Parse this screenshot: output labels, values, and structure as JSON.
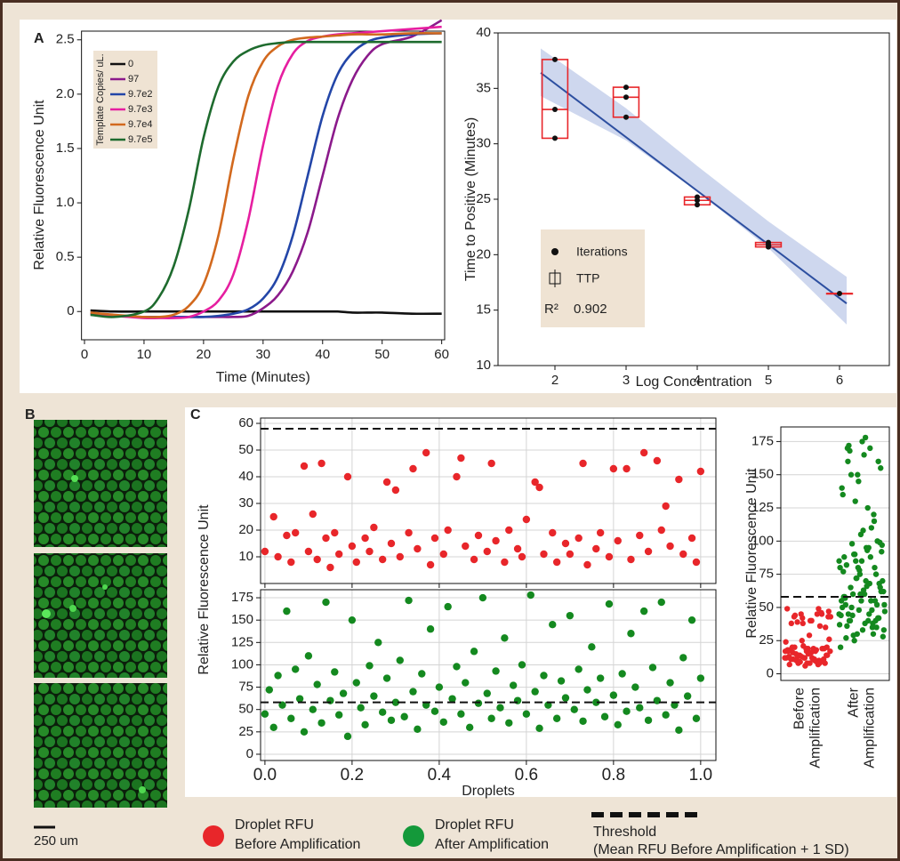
{
  "panel_labels": [
    "A",
    "B",
    "C"
  ],
  "scale_bar": "250 um",
  "legend": [
    {
      "lines": [
        "Droplet RFU",
        "Before Amplification"
      ],
      "color": "#e8262a"
    },
    {
      "lines": [
        "Droplet RFU",
        "After Amplification"
      ],
      "color": "#14993a"
    },
    {
      "lines": [
        "Threshold",
        "(Mean RFU Before Amplification + 1 SD)"
      ],
      "color": "#111111"
    }
  ],
  "chart_data": [
    {
      "type": "line",
      "xlabel": "Time (Minutes)",
      "ylabel": "Relative Fluorescence Unit",
      "legend_title": "Template Copies/ uL.",
      "xlim": [
        -0.5,
        60.5
      ],
      "ylim": [
        -0.26,
        2.58
      ],
      "xticks": [
        0,
        10,
        20,
        30,
        40,
        50,
        60
      ],
      "yticks": [
        0,
        0.5,
        {
          "value": 1,
          "label": "1.0"
        },
        1.5,
        {
          "value": 2,
          "label": "2.0"
        },
        2.5
      ],
      "x": [
        1,
        5,
        10,
        12.5,
        15,
        17.5,
        20,
        22.5,
        25,
        27.5,
        30,
        32.5,
        35,
        37.5,
        40,
        42.5,
        45,
        47.5,
        50,
        55,
        60
      ],
      "series": [
        {
          "name": "0",
          "color": "#111111",
          "values": [
            0.01,
            0,
            0,
            0,
            0,
            0,
            0,
            0,
            0,
            0,
            0,
            0,
            0,
            0,
            0,
            0,
            -0.01,
            -0.01,
            -0.01,
            -0.02,
            -0.02
          ]
        },
        {
          "name": "97",
          "color": "#8b1a8b",
          "values": [
            -0.02,
            -0.04,
            -0.05,
            -0.05,
            -0.05,
            -0.05,
            -0.05,
            -0.05,
            -0.05,
            -0.04,
            0.03,
            0.15,
            0.37,
            0.73,
            1.25,
            1.77,
            2.13,
            2.35,
            2.46,
            2.53,
            2.68
          ]
        },
        {
          "name": "9.7e2",
          "color": "#2346a8",
          "values": [
            -0.02,
            -0.04,
            -0.05,
            -0.05,
            -0.05,
            -0.05,
            -0.05,
            -0.04,
            -0.02,
            0.02,
            0.12,
            0.32,
            0.7,
            1.25,
            1.8,
            2.18,
            2.38,
            2.48,
            2.52,
            2.55,
            2.56
          ]
        },
        {
          "name": "9.7e3",
          "color": "#e61ea0",
          "values": [
            -0.02,
            -0.04,
            -0.06,
            -0.06,
            -0.06,
            -0.05,
            0,
            0.1,
            0.34,
            0.84,
            1.53,
            2.08,
            2.37,
            2.49,
            2.53,
            2.55,
            2.56,
            2.57,
            2.58,
            2.6,
            2.62
          ]
        },
        {
          "name": "9.7e4",
          "color": "#d2691e",
          "values": [
            -0.01,
            -0.03,
            -0.05,
            -0.05,
            -0.03,
            0.05,
            0.25,
            0.7,
            1.4,
            1.98,
            2.3,
            2.44,
            2.5,
            2.52,
            2.53,
            2.54,
            2.55,
            2.55,
            2.55,
            2.56,
            2.56
          ]
        },
        {
          "name": "9.7e5",
          "color": "#1e6b2e",
          "values": [
            -0.03,
            -0.05,
            0,
            0.13,
            0.42,
            0.93,
            1.6,
            2.07,
            2.3,
            2.4,
            2.45,
            2.47,
            2.48,
            2.48,
            2.48,
            2.48,
            2.48,
            2.48,
            2.48,
            2.48,
            2.48
          ]
        }
      ]
    },
    {
      "type": "box",
      "xlabel": "Log Concentration",
      "ylabel": "Time to Positive (Minutes)",
      "xlim": [
        1.2,
        6.7
      ],
      "ylim": [
        10,
        40
      ],
      "xticks": [
        2,
        3,
        4,
        5,
        6
      ],
      "yticks": [
        10,
        15,
        20,
        25,
        30,
        35,
        40
      ],
      "points": {
        "name": "Iterations",
        "color": "#111111",
        "x": [
          2,
          2,
          2,
          3,
          3,
          3,
          4,
          4,
          4,
          5,
          5,
          5,
          6
        ],
        "values": [
          37.6,
          33.1,
          30.5,
          35.1,
          34.2,
          32.4,
          25.2,
          24.9,
          24.5,
          21.1,
          20.9,
          20.7,
          16.5
        ]
      },
      "boxes": {
        "name": "TTP",
        "color": "#e8262a",
        "x": [
          2,
          3,
          4,
          5,
          6
        ],
        "q1": [
          30.5,
          32.4,
          24.5,
          20.7,
          16.5
        ],
        "median": [
          33.1,
          34.2,
          24.9,
          20.9,
          16.5
        ],
        "q3": [
          37.6,
          35.1,
          25.2,
          21.1,
          16.5
        ]
      },
      "fit": {
        "color": "#2d4fa0",
        "x": [
          1.8,
          6.1
        ],
        "values": [
          36.4,
          15.6
        ]
      },
      "band": {
        "color": "#c9d3ec",
        "x": [
          1.8,
          3,
          4,
          5,
          6.1
        ],
        "lower": [
          34.3,
          30.3,
          25.7,
          20.6,
          13.7
        ],
        "upper": [
          38.6,
          33.2,
          28.0,
          23.0,
          18.0
        ]
      },
      "r2_label": "R²",
      "r2": 0.902
    },
    {
      "type": "scatter",
      "color": "#e8262a",
      "grid": true,
      "threshold": 58,
      "xlim": [
        -0.01,
        1.035
      ],
      "ylim": [
        0,
        62
      ],
      "xticks": [
        0,
        0.2,
        0.4,
        0.6,
        0.8,
        1
      ],
      "show_xtick_labels": false,
      "yticks": [
        10,
        20,
        30,
        40,
        50,
        60
      ],
      "x": [
        0,
        0.02,
        0.03,
        0.05,
        0.06,
        0.07,
        0.09,
        0.1,
        0.11,
        0.12,
        0.13,
        0.14,
        0.15,
        0.16,
        0.17,
        0.19,
        0.2,
        0.21,
        0.23,
        0.24,
        0.25,
        0.27,
        0.28,
        0.29,
        0.3,
        0.31,
        0.33,
        0.34,
        0.35,
        0.37,
        0.38,
        0.39,
        0.41,
        0.42,
        0.44,
        0.45,
        0.46,
        0.48,
        0.49,
        0.51,
        0.52,
        0.53,
        0.55,
        0.56,
        0.58,
        0.59,
        0.6,
        0.62,
        0.63,
        0.64,
        0.66,
        0.67,
        0.69,
        0.7,
        0.72,
        0.73,
        0.74,
        0.76,
        0.77,
        0.79,
        0.8,
        0.81,
        0.83,
        0.84,
        0.86,
        0.87,
        0.88,
        0.9,
        0.91,
        0.92,
        0.93,
        0.95,
        0.96,
        0.98,
        1,
        0.99
      ],
      "values": [
        12,
        25,
        10,
        18,
        8,
        19,
        44,
        12,
        26,
        9,
        45,
        17,
        6,
        19,
        11,
        40,
        14,
        8,
        17,
        12,
        21,
        9,
        38,
        15,
        35,
        10,
        19,
        43,
        13,
        49,
        7,
        17,
        11,
        20,
        40,
        47,
        14,
        9,
        18,
        12,
        45,
        16,
        8,
        20,
        13,
        10,
        24,
        38,
        36,
        11,
        19,
        8,
        15,
        11,
        17,
        45,
        7,
        13,
        19,
        10,
        43,
        16,
        43,
        9,
        18,
        49,
        12,
        46,
        20,
        29,
        14,
        39,
        11,
        17,
        42,
        8
      ]
    },
    {
      "type": "scatter",
      "color": "#14891f",
      "grid": true,
      "threshold": 58,
      "xlabel": "Droplets",
      "ylabel": "Relative Fluorescence Unit",
      "xlim": [
        -0.01,
        1.035
      ],
      "ylim": [
        -7,
        184
      ],
      "xticks": [
        {
          "value": 0,
          "label": "0.0"
        },
        0.2,
        0.4,
        0.6,
        0.8,
        {
          "value": 1,
          "label": "1.0"
        }
      ],
      "show_xtick_labels": true,
      "yticks": [
        0,
        25,
        50,
        75,
        100,
        125,
        150,
        175
      ],
      "x": [
        0,
        0.01,
        0.02,
        0.03,
        0.04,
        0.05,
        0.06,
        0.07,
        0.08,
        0.09,
        0.1,
        0.11,
        0.12,
        0.13,
        0.14,
        0.15,
        0.16,
        0.17,
        0.18,
        0.19,
        0.2,
        0.21,
        0.22,
        0.23,
        0.24,
        0.25,
        0.26,
        0.27,
        0.28,
        0.29,
        0.3,
        0.31,
        0.32,
        0.33,
        0.34,
        0.35,
        0.36,
        0.37,
        0.38,
        0.39,
        0.4,
        0.41,
        0.42,
        0.43,
        0.44,
        0.45,
        0.46,
        0.47,
        0.48,
        0.49,
        0.5,
        0.51,
        0.52,
        0.53,
        0.54,
        0.55,
        0.56,
        0.57,
        0.58,
        0.59,
        0.6,
        0.61,
        0.62,
        0.63,
        0.64,
        0.65,
        0.66,
        0.67,
        0.68,
        0.69,
        0.7,
        0.71,
        0.72,
        0.73,
        0.74,
        0.75,
        0.76,
        0.77,
        0.78,
        0.79,
        0.8,
        0.81,
        0.82,
        0.83,
        0.84,
        0.85,
        0.86,
        0.87,
        0.88,
        0.89,
        0.9,
        0.91,
        0.92,
        0.93,
        0.94,
        0.95,
        0.96,
        0.97,
        0.98,
        0.99,
        1
      ],
      "values": [
        45,
        72,
        30,
        88,
        55,
        160,
        40,
        95,
        62,
        25,
        110,
        50,
        78,
        35,
        170,
        60,
        92,
        44,
        68,
        20,
        150,
        80,
        52,
        33,
        99,
        65,
        125,
        47,
        85,
        38,
        58,
        105,
        42,
        172,
        70,
        28,
        90,
        55,
        140,
        48,
        75,
        36,
        165,
        62,
        98,
        45,
        80,
        30,
        115,
        57,
        175,
        68,
        40,
        93,
        52,
        130,
        35,
        77,
        60,
        100,
        45,
        178,
        70,
        29,
        88,
        55,
        145,
        40,
        82,
        63,
        155,
        50,
        95,
        37,
        72,
        120,
        58,
        85,
        42,
        168,
        66,
        33,
        90,
        48,
        135,
        75,
        52,
        160,
        38,
        97,
        60,
        170,
        44,
        80,
        55,
        27,
        108,
        65,
        150,
        40,
        85
      ]
    },
    {
      "type": "strip",
      "grid": true,
      "threshold": 58,
      "ylabel": "Relative Fluorescence Unit",
      "categories": [
        [
          "Before",
          "Amplification"
        ],
        [
          "After",
          "Amplification"
        ]
      ],
      "ylim": [
        -5,
        186
      ],
      "yticks": [
        0,
        25,
        50,
        75,
        100,
        125,
        150,
        175
      ]
    }
  ]
}
